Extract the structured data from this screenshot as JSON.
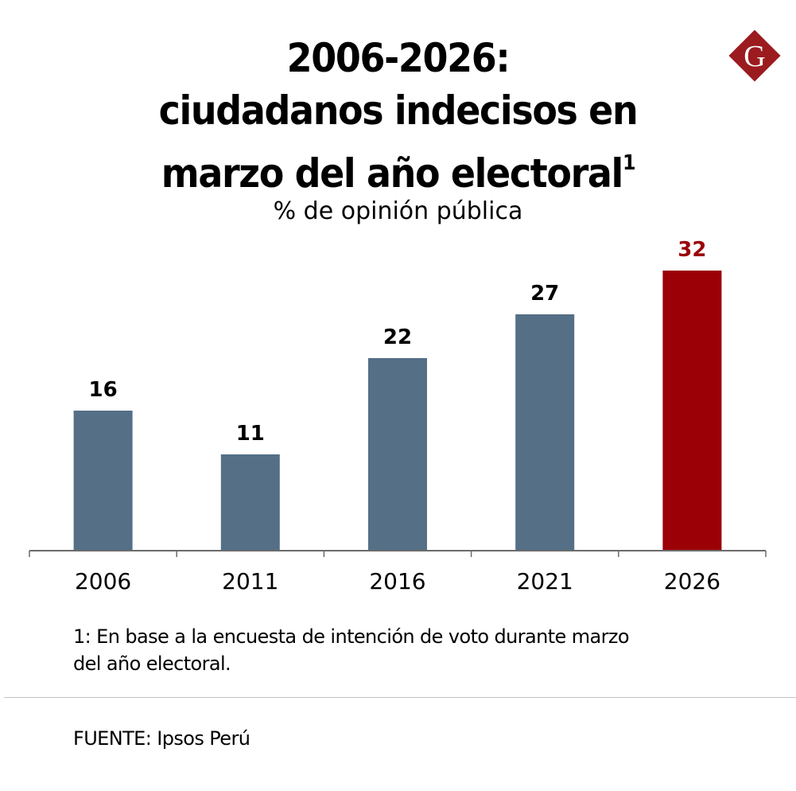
{
  "header": {
    "title_lines": [
      "2006-2026:",
      "ciudadanos indecisos en",
      "marzo del año electoral"
    ],
    "title_footnote_marker": "1",
    "subtitle": "% de opinión pública",
    "logo_letter": "G"
  },
  "colors": {
    "bar_default": "#546f86",
    "bar_highlight": "#9b0006",
    "label_highlight": "#9b0006",
    "axis": "#6b6b6b",
    "logo": "#9b1b1f"
  },
  "chart_data": {
    "type": "bar",
    "title": "2006-2026: ciudadanos indecisos en marzo del año electoral",
    "subtitle": "% de opinión pública",
    "xlabel": "",
    "ylabel": "% de opinión pública",
    "categories": [
      "2006",
      "2011",
      "2016",
      "2021",
      "2026"
    ],
    "values": [
      16,
      11,
      22,
      27,
      32
    ],
    "highlight_index": 4,
    "data_labels": [
      "16",
      "11",
      "22",
      "27",
      "32"
    ],
    "ylim": [
      0,
      32
    ],
    "grid": false,
    "legend": "none"
  },
  "footer": {
    "footnote": "1: En base a la encuesta de intención de voto durante marzo del año electoral.",
    "footnote_lines": [
      "1: En base a la encuesta de intención de voto durante marzo",
      "del año electoral."
    ],
    "source": "FUENTE: Ipsos Perú"
  }
}
